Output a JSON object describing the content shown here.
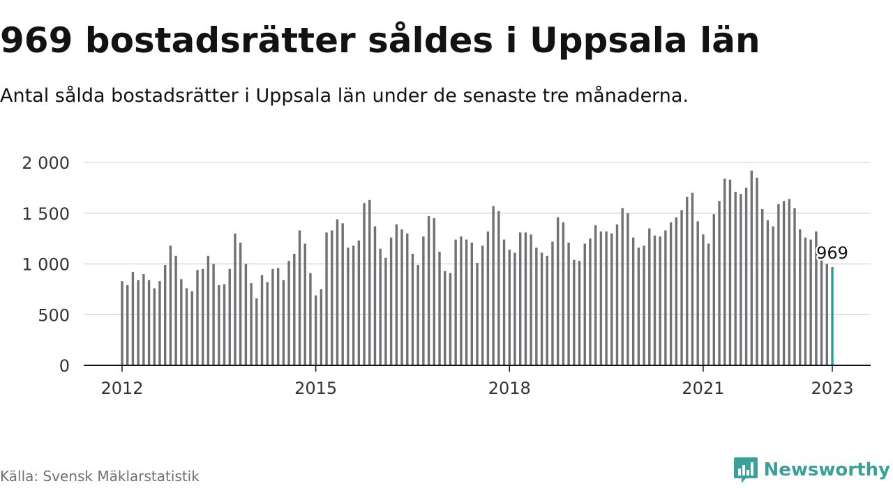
{
  "title": "969 bostadsrätter såldes i Uppsala län",
  "subtitle": "Antal sålda bostadsrätter i Uppsala län under de senaste tre månaderna.",
  "source": "Källa: Svensk Mäklarstatistik",
  "brand": {
    "name": "Newsworthy",
    "icon": "newsworthy-logo-icon"
  },
  "colors": {
    "bar": "#707075",
    "highlight": "#23a199",
    "grid": "#dadada",
    "axis": "#121212",
    "brand": "#3aa198"
  },
  "chart_data": {
    "type": "bar",
    "title": "969 bostadsrätter såldes i Uppsala län",
    "subtitle": "Antal sålda bostadsrätter i Uppsala län under de senaste tre månaderna.",
    "xlabel": "",
    "ylabel": "",
    "ylim": [
      0,
      2000
    ],
    "yticks": [
      0,
      500,
      1000,
      1500,
      2000
    ],
    "ytick_labels": [
      "0",
      "500",
      "1 000",
      "1 500",
      "2 000"
    ],
    "xlim": [
      "2012-01",
      "2023-01"
    ],
    "xtick_labels": [
      "2012",
      "2015",
      "2018",
      "2021",
      "2023"
    ],
    "grid": true,
    "highlight": {
      "x": "2023-01",
      "value": 969,
      "label": "969"
    },
    "x": [
      "2012-01",
      "2012-02",
      "2012-03",
      "2012-04",
      "2012-05",
      "2012-06",
      "2012-07",
      "2012-08",
      "2012-09",
      "2012-10",
      "2012-11",
      "2012-12",
      "2013-01",
      "2013-02",
      "2013-03",
      "2013-04",
      "2013-05",
      "2013-06",
      "2013-07",
      "2013-08",
      "2013-09",
      "2013-10",
      "2013-11",
      "2013-12",
      "2014-01",
      "2014-02",
      "2014-03",
      "2014-04",
      "2014-05",
      "2014-06",
      "2014-07",
      "2014-08",
      "2014-09",
      "2014-10",
      "2014-11",
      "2014-12",
      "2015-01",
      "2015-02",
      "2015-03",
      "2015-04",
      "2015-05",
      "2015-06",
      "2015-07",
      "2015-08",
      "2015-09",
      "2015-10",
      "2015-11",
      "2015-12",
      "2016-01",
      "2016-02",
      "2016-03",
      "2016-04",
      "2016-05",
      "2016-06",
      "2016-07",
      "2016-08",
      "2016-09",
      "2016-10",
      "2016-11",
      "2016-12",
      "2017-01",
      "2017-02",
      "2017-03",
      "2017-04",
      "2017-05",
      "2017-06",
      "2017-07",
      "2017-08",
      "2017-09",
      "2017-10",
      "2017-11",
      "2017-12",
      "2018-01",
      "2018-02",
      "2018-03",
      "2018-04",
      "2018-05",
      "2018-06",
      "2018-07",
      "2018-08",
      "2018-09",
      "2018-10",
      "2018-11",
      "2018-12",
      "2019-01",
      "2019-02",
      "2019-03",
      "2019-04",
      "2019-05",
      "2019-06",
      "2019-07",
      "2019-08",
      "2019-09",
      "2019-10",
      "2019-11",
      "2019-12",
      "2020-01",
      "2020-02",
      "2020-03",
      "2020-04",
      "2020-05",
      "2020-06",
      "2020-07",
      "2020-08",
      "2020-09",
      "2020-10",
      "2020-11",
      "2020-12",
      "2021-01",
      "2021-02",
      "2021-03",
      "2021-04",
      "2021-05",
      "2021-06",
      "2021-07",
      "2021-08",
      "2021-09",
      "2021-10",
      "2021-11",
      "2021-12",
      "2022-01",
      "2022-02",
      "2022-03",
      "2022-04",
      "2022-05",
      "2022-06",
      "2022-07",
      "2022-08",
      "2022-09",
      "2022-10",
      "2022-11",
      "2022-12",
      "2023-01"
    ],
    "values": [
      830,
      790,
      920,
      840,
      900,
      840,
      760,
      830,
      990,
      1180,
      1080,
      850,
      760,
      730,
      940,
      950,
      1080,
      1000,
      790,
      800,
      950,
      1300,
      1210,
      1000,
      810,
      660,
      890,
      820,
      950,
      960,
      840,
      1030,
      1100,
      1330,
      1200,
      910,
      690,
      750,
      1310,
      1330,
      1440,
      1400,
      1160,
      1180,
      1230,
      1600,
      1630,
      1370,
      1150,
      1060,
      1260,
      1390,
      1340,
      1300,
      1100,
      990,
      1270,
      1470,
      1450,
      1120,
      930,
      910,
      1240,
      1270,
      1240,
      1210,
      1010,
      1180,
      1320,
      1570,
      1520,
      1240,
      1140,
      1110,
      1310,
      1310,
      1290,
      1160,
      1110,
      1080,
      1220,
      1460,
      1410,
      1210,
      1040,
      1030,
      1200,
      1250,
      1380,
      1320,
      1320,
      1300,
      1390,
      1550,
      1500,
      1260,
      1160,
      1180,
      1350,
      1280,
      1270,
      1330,
      1410,
      1460,
      1530,
      1660,
      1700,
      1420,
      1290,
      1200,
      1490,
      1620,
      1840,
      1830,
      1710,
      1690,
      1750,
      1920,
      1850,
      1540,
      1430,
      1370,
      1590,
      1620,
      1640,
      1550,
      1340,
      1260,
      1240,
      1320,
      1120,
      1000,
      969
    ]
  }
}
